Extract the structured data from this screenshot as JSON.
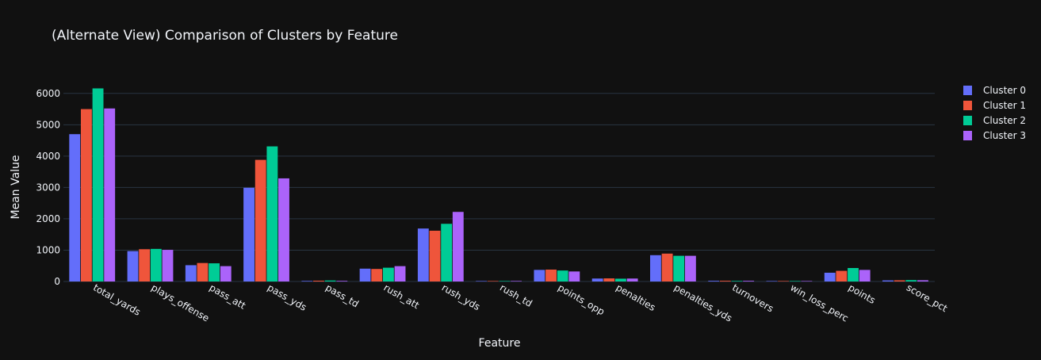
{
  "chart_data": {
    "type": "bar",
    "title": "(Alternate View) Comparison of Clusters by Feature",
    "xlabel": "Feature",
    "ylabel": "Mean Value",
    "ylim": [
      0,
      6450
    ],
    "yticks": [
      0,
      1000,
      2000,
      3000,
      4000,
      5000,
      6000
    ],
    "ytick_labels": [
      "0",
      "1000",
      "2000",
      "3000",
      "4000",
      "5000",
      "6000"
    ],
    "grid": true,
    "legend_position": "top-right",
    "categories": [
      "total_yards",
      "plays_offense",
      "pass_att",
      "pass_yds",
      "pass_td",
      "rush_att",
      "rush_yds",
      "rush_td",
      "points_opp",
      "penalties",
      "penalties_yds",
      "turnovers",
      "win_loss_perc",
      "points",
      "score_pct"
    ],
    "series": [
      {
        "name": "Cluster 0",
        "color": "#636efa",
        "values": [
          4700,
          970,
          520,
          2990,
          18,
          410,
          1690,
          11,
          370,
          95,
          840,
          22,
          0.45,
          280,
          35
        ]
      },
      {
        "name": "Cluster 1",
        "color": "#ef553b",
        "values": [
          5500,
          1030,
          590,
          3880,
          26,
          400,
          1620,
          12,
          380,
          100,
          890,
          23,
          0.5,
          340,
          38
        ]
      },
      {
        "name": "Cluster 2",
        "color": "#00cc96",
        "values": [
          6160,
          1040,
          580,
          4310,
          32,
          440,
          1840,
          15,
          350,
          90,
          820,
          18,
          0.6,
          430,
          45
        ]
      },
      {
        "name": "Cluster 3",
        "color": "#ab63fa",
        "values": [
          5520,
          1010,
          490,
          3290,
          20,
          490,
          2220,
          17,
          320,
          95,
          820,
          22,
          0.5,
          370,
          40
        ]
      }
    ]
  },
  "colors": {
    "background": "#111111",
    "grid": "#283442",
    "text": "#f2f5fa"
  }
}
